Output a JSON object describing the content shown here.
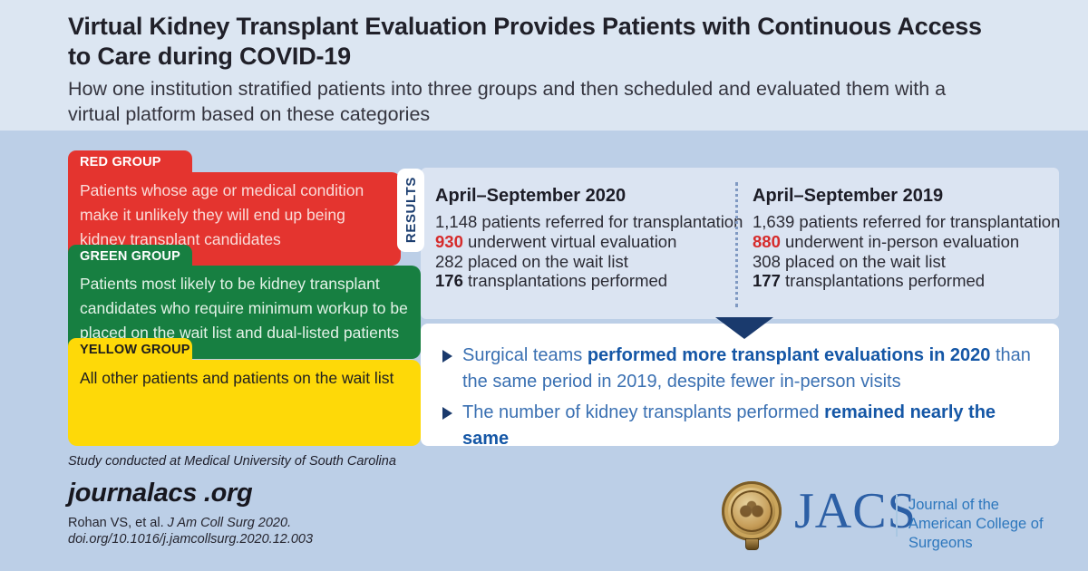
{
  "header": {
    "title_lines": [
      "Virtual Kidney Transplant Evaluation Provides Patients with Continuous Access",
      "to Care during COVID-19"
    ],
    "subtitle_lines": [
      "How one institution stratified patients into three groups and then scheduled and evaluated them with a",
      "virtual platform based on these categories"
    ]
  },
  "groups": [
    {
      "id": "red",
      "label": "RED GROUP",
      "color": "#e4342f",
      "lines": [
        "Patients whose age or medical condition",
        "make it unlikely they will end up being",
        "kidney transplant candidates"
      ]
    },
    {
      "id": "green",
      "label": "GREEN GROUP",
      "color": "#177f41",
      "lines": [
        "Patients most likely to be kidney transplant",
        "candidates who require minimum workup to be",
        "placed on the wait list and dual-listed patients"
      ]
    },
    {
      "id": "yellow",
      "label": "YELLOW GROUP",
      "color": "#fed908",
      "lines": [
        "All other patients and patients on the wait list"
      ]
    }
  ],
  "results": {
    "label": "RESULTS",
    "columns": [
      {
        "title": "April–September 2020",
        "lines": [
          {
            "value": "1,148",
            "style": "plain",
            "text": " patients referred for transplantation"
          },
          {
            "value": "930",
            "style": "red",
            "text": " underwent virtual evaluation"
          },
          {
            "value": "282",
            "style": "plain",
            "text": " placed on the wait list"
          },
          {
            "value": "176",
            "style": "bold",
            "text": " transplantations performed"
          }
        ]
      },
      {
        "title": "April–September 2019",
        "lines": [
          {
            "value": "1,639",
            "style": "plain",
            "text": " patients referred for transplantation"
          },
          {
            "value": "880",
            "style": "red",
            "text": " underwent in-person evaluation"
          },
          {
            "value": "308",
            "style": "plain",
            "text": " placed on the wait list"
          },
          {
            "value": "177",
            "style": "bold",
            "text": " transplantations performed"
          }
        ]
      }
    ]
  },
  "findings": {
    "bullets": [
      {
        "segments": [
          {
            "text": "Surgical teams ",
            "bold": false
          },
          {
            "text": "performed more transplant evaluations in 2020",
            "bold": true
          },
          {
            "text": " than\nthe same period in 2019, despite fewer in-person visits",
            "bold": false
          }
        ]
      },
      {
        "segments": [
          {
            "text": "The number of kidney transplants performed ",
            "bold": false
          },
          {
            "text": "remained nearly the same",
            "bold": true
          }
        ]
      }
    ]
  },
  "footer": {
    "study_note": "Study conducted at Medical University of South Carolina",
    "site": "journalacs .org",
    "citation_plain": "Rohan VS, et al. ",
    "citation_italic": "J Am Coll Surg 2020.",
    "doi": "doi.org/10.1016/j.jamcollsurg.2020.12.003"
  },
  "logo": {
    "acronym": "JACS",
    "tagline_lines": [
      "Journal of the",
      "American College of Surgeons"
    ]
  },
  "colors": {
    "background": "#bccfe7",
    "header_background": "#dce6f2",
    "panel_background": "#dbe4f2",
    "red": "#e4342f",
    "green": "#177f41",
    "yellow": "#fed908",
    "navy": "#1a3a6d",
    "stat_red": "#d62b2b",
    "bullet_blue": "#3a70b2",
    "bullet_blue_bold": "#1557a6",
    "jacs_blue": "#2c5fa5",
    "tagline_blue": "#2d77bd"
  }
}
